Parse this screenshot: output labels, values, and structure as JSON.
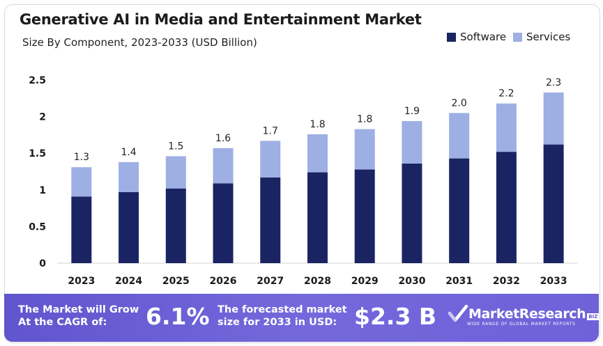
{
  "header": {
    "title": "Generative AI in Media and Entertainment Market",
    "subtitle": "Size By Component, 2023-2033 (USD Billion)"
  },
  "legend": {
    "items": [
      {
        "label": "Software",
        "color": "#1b2463"
      },
      {
        "label": "Services",
        "color": "#9dafe3"
      }
    ]
  },
  "chart_data": {
    "type": "bar",
    "stacked": true,
    "title": "Generative AI in Media and Entertainment Market",
    "subtitle": "Size By Component, 2023-2033 (USD Billion)",
    "categories": [
      "2023",
      "2024",
      "2025",
      "2026",
      "2027",
      "2028",
      "2029",
      "2030",
      "2031",
      "2032",
      "2033"
    ],
    "series": [
      {
        "name": "Software",
        "color": "#1b2463",
        "values": [
          0.91,
          0.97,
          1.02,
          1.09,
          1.17,
          1.24,
          1.28,
          1.36,
          1.43,
          1.52,
          1.62
        ]
      },
      {
        "name": "Services",
        "color": "#9dafe3",
        "values": [
          0.4,
          0.41,
          0.44,
          0.48,
          0.5,
          0.52,
          0.55,
          0.58,
          0.62,
          0.66,
          0.71
        ]
      }
    ],
    "total_labels": [
      "1.3",
      "1.4",
      "1.5",
      "1.6",
      "1.7",
      "1.8",
      "1.8",
      "1.9",
      "2.0",
      "2.2",
      "2.3"
    ],
    "y_ticks": [
      "0",
      "0.5",
      "1",
      "1.5",
      "2",
      "2.5"
    ],
    "ylim": [
      0,
      2.5
    ],
    "xlabel": "",
    "ylabel": "",
    "grid": false,
    "legend_position": "top-right"
  },
  "footer": {
    "cagr_text_line1": "The Market will Grow",
    "cagr_text_line2": "At the CAGR of:",
    "cagr_value": "6.1%",
    "forecast_text_line1": "The forecasted market",
    "forecast_text_line2": "size for 2033 in USD:",
    "forecast_value": "$2.3 B",
    "brand_name": "MarketResearch",
    "brand_suffix": "BIZ",
    "brand_tagline": "WIDE RANGE OF GLOBAL MARKET REPORTS"
  }
}
